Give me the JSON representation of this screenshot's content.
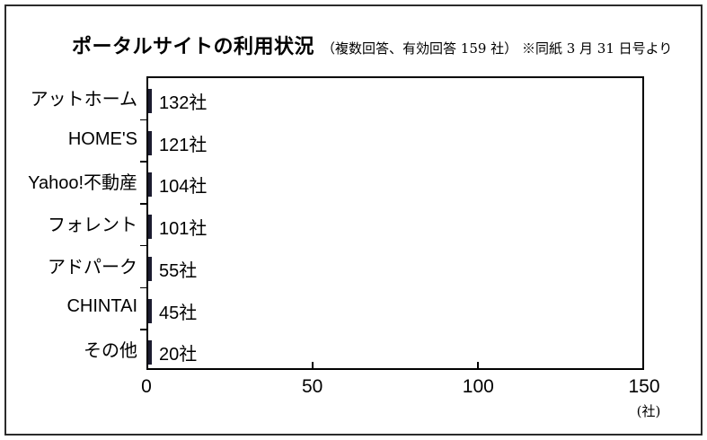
{
  "title": {
    "main": "ポータルサイトの利用状況",
    "annotation": "（複数回答、有効回答 159 社） ※同紙 3 月 31 日号より"
  },
  "chart_data": {
    "type": "bar",
    "orientation": "horizontal",
    "title": "ポータルサイトの利用状況",
    "subtitle": "（複数回答、有効回答 159 社） ※同紙 3 月 31 日号より",
    "categories": [
      "アットホーム",
      "HOME'S",
      "Yahoo!不動産",
      "フォレント",
      "アドパーク",
      "CHINTAI",
      "その他"
    ],
    "values": [
      132,
      121,
      104,
      101,
      55,
      45,
      20
    ],
    "value_labels": [
      "132社",
      "121社",
      "104社",
      "101社",
      "55社",
      "45社",
      "20社"
    ],
    "unit_suffix": "社",
    "xlabel": "(社)",
    "xlim": [
      0,
      150
    ],
    "x_ticks": [
      0,
      50,
      100,
      150
    ],
    "grid": false,
    "legend": "none",
    "bar_color": "#9a9afa",
    "bar_border_color": "#1c1c30"
  }
}
